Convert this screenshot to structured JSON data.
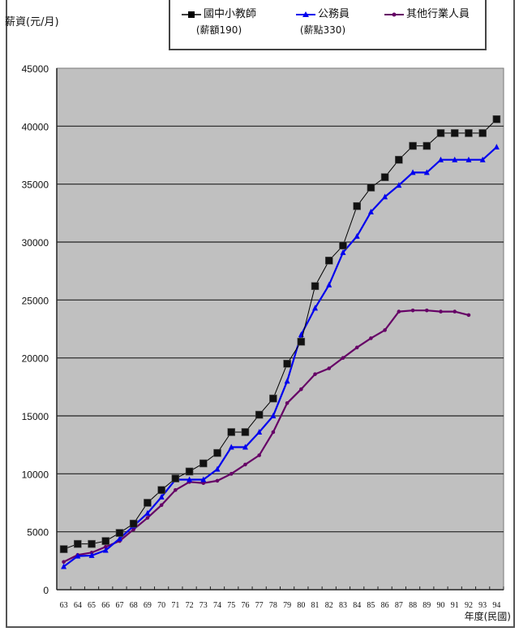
{
  "chart_data": {
    "type": "line",
    "title": "",
    "ylabel": "薪資(元/月)",
    "xlabel": "年度(民國)",
    "ylim": [
      0,
      45000
    ],
    "yticks": [
      0,
      5000,
      10000,
      15000,
      20000,
      25000,
      30000,
      35000,
      40000,
      45000
    ],
    "grid": true,
    "legend_position": "top",
    "categories": [
      "63",
      "64",
      "65",
      "66",
      "67",
      "68",
      "69",
      "70",
      "71",
      "72",
      "73",
      "74",
      "75",
      "76",
      "77",
      "78",
      "79",
      "80",
      "81",
      "82",
      "83",
      "84",
      "85",
      "86",
      "87",
      "88",
      "89",
      "90",
      "91",
      "92",
      "93",
      "94"
    ],
    "series": [
      {
        "name": "國中小教師(薪額190)",
        "color": "#000000",
        "marker": "square",
        "values": [
          3500,
          3950,
          3950,
          4200,
          4900,
          5700,
          7500,
          8600,
          9600,
          10200,
          10900,
          11800,
          13600,
          13600,
          15100,
          16500,
          19500,
          21400,
          26200,
          28400,
          29700,
          33100,
          34700,
          35600,
          37100,
          38300,
          38300,
          39400,
          39400,
          39400,
          39400,
          40600
        ]
      },
      {
        "name": "公務員(薪點330)",
        "color": "#0000ee",
        "marker": "triangle",
        "values": [
          2000,
          2900,
          2950,
          3400,
          4400,
          5500,
          6600,
          8000,
          9500,
          9500,
          9500,
          10400,
          12300,
          12300,
          13600,
          15000,
          18000,
          22000,
          24300,
          26300,
          29100,
          30500,
          32600,
          33900,
          34900,
          36000,
          36000,
          37100,
          37100,
          37100,
          37100,
          38200
        ]
      },
      {
        "name": "其他行業人員",
        "color": "#660066",
        "marker": "dot",
        "values": [
          2400,
          3000,
          3200,
          3700,
          4200,
          5200,
          6200,
          7300,
          8600,
          9300,
          9200,
          9400,
          10000,
          10800,
          11600,
          13600,
          16100,
          17300,
          18600,
          19100,
          20000,
          20900,
          21700,
          22400,
          24000,
          24100,
          24100,
          24000,
          24000,
          23700,
          null,
          null
        ]
      }
    ]
  },
  "legend": {
    "teacher": {
      "label": "國中小教師",
      "sub": "(薪額190)"
    },
    "civil": {
      "label": "公務員",
      "sub": "(薪點330)"
    },
    "other": {
      "label": "其他行業人員"
    }
  }
}
